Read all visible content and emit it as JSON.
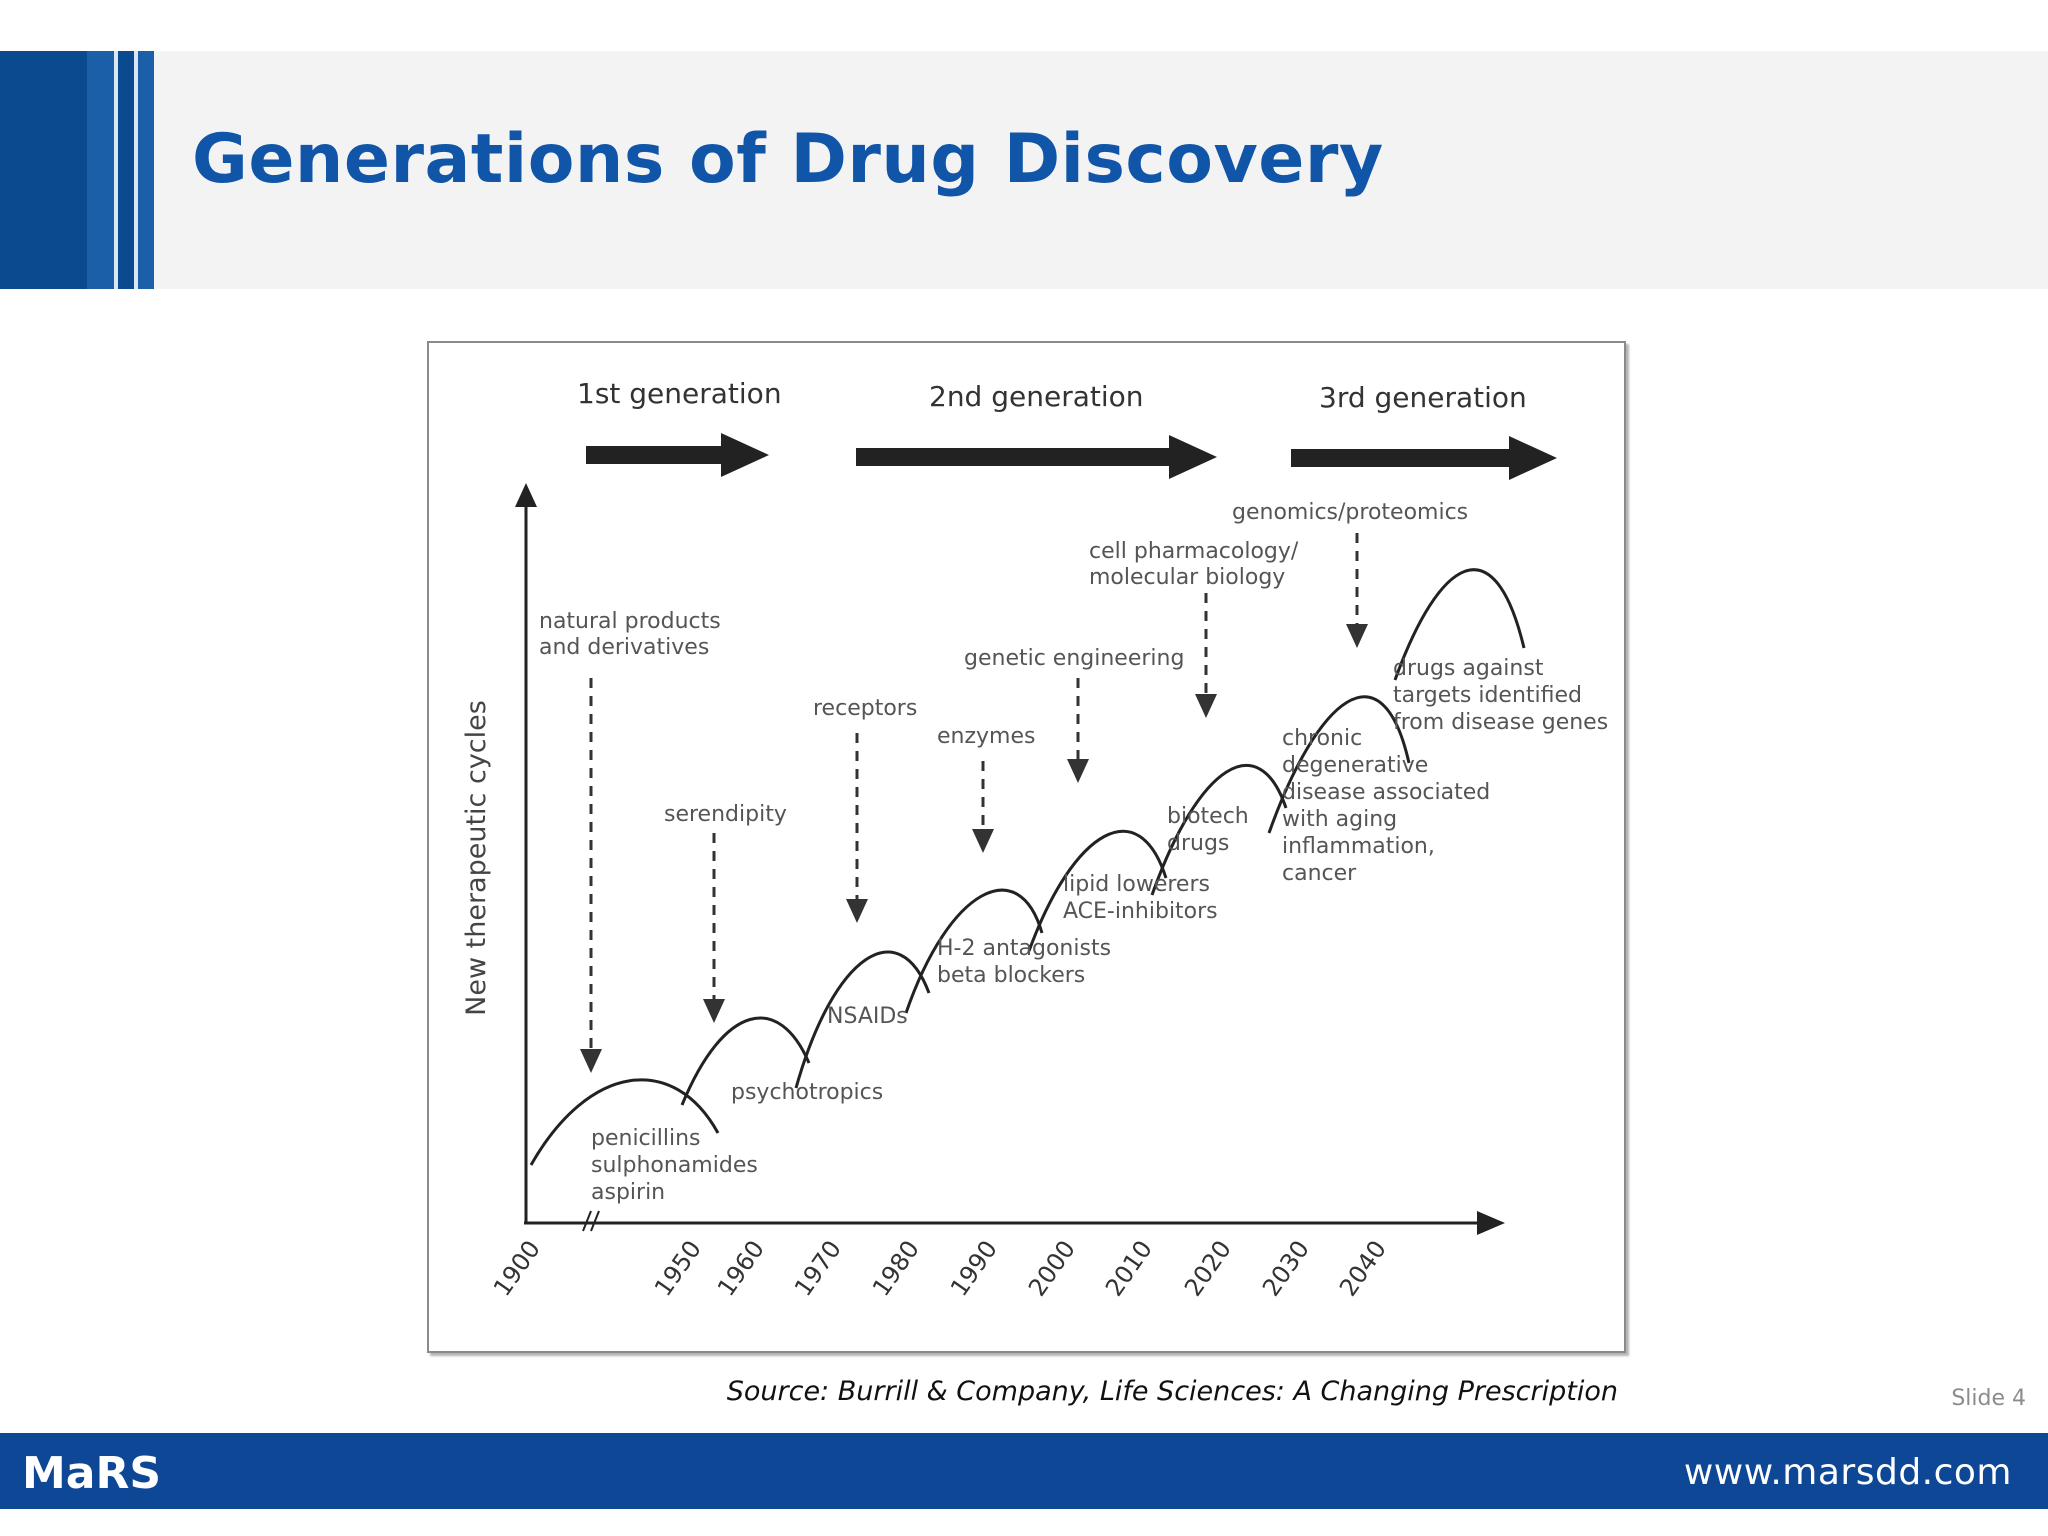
{
  "slide": {
    "title": "Generations of Drug Discovery",
    "source": "Source: Burrill & Company, Life Sciences: A Changing Prescription",
    "slide_number": "Slide 4"
  },
  "footer": {
    "logo_text": "MaRS",
    "url": "www.marsdd.com"
  },
  "colors": {
    "title_blue": "#1055a8",
    "footer_blue": "#0e4796"
  },
  "diagram": {
    "generations": [
      {
        "label": "1st generation"
      },
      {
        "label": "2nd generation"
      },
      {
        "label": "3rd generation"
      }
    ],
    "y_axis_label": "New therapeutic cycles",
    "decade_ticks": [
      "1900",
      "1950",
      "1960",
      "1970",
      "1980",
      "1990",
      "2000",
      "2010",
      "2020",
      "2030",
      "2040"
    ],
    "drivers": [
      {
        "lines": [
          "natural products",
          "and derivatives"
        ]
      },
      {
        "lines": [
          "serendipity"
        ]
      },
      {
        "lines": [
          "receptors"
        ]
      },
      {
        "lines": [
          "enzymes"
        ]
      },
      {
        "lines": [
          "genetic engineering"
        ]
      },
      {
        "lines": [
          "cell pharmacology/",
          "molecular biology"
        ]
      },
      {
        "lines": [
          "genomics/proteomics"
        ]
      }
    ],
    "cycles": [
      {
        "lines": [
          "penicillins",
          "sulphonamides",
          "aspirin"
        ]
      },
      {
        "lines": [
          "psychotropics"
        ]
      },
      {
        "lines": [
          "NSAIDs"
        ]
      },
      {
        "lines": [
          "H-2 antagonists",
          "beta blockers"
        ]
      },
      {
        "lines": [
          "lipid lowerers",
          "ACE-inhibitors"
        ]
      },
      {
        "lines": [
          "biotech",
          "drugs"
        ]
      },
      {
        "lines": [
          "chronic",
          "degenerative",
          "disease associated",
          "with aging",
          "inflammation,",
          "cancer"
        ]
      },
      {
        "lines": [
          "drugs against",
          "targets identified",
          "from disease genes"
        ]
      }
    ]
  }
}
